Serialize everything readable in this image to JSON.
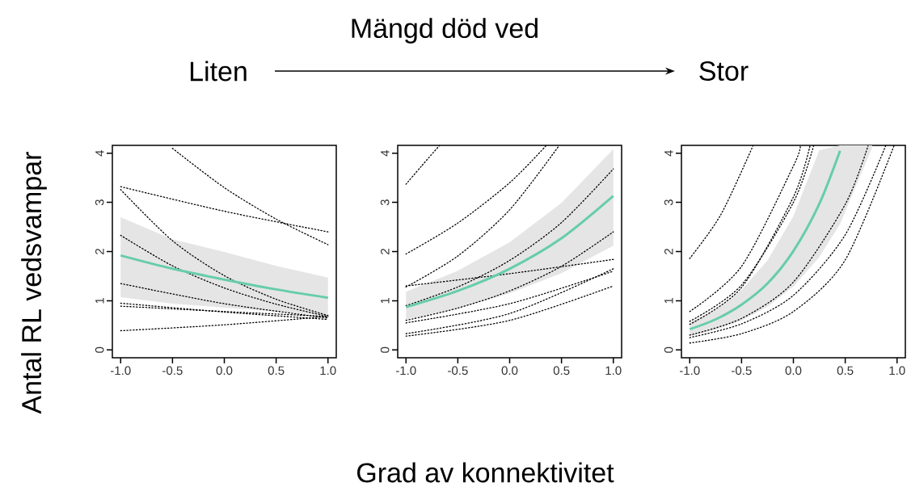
{
  "chart_data": [
    {
      "type": "line",
      "ylabel": "Antal RL vedsvampar",
      "annotations": [
        "Liten"
      ],
      "xlim": [
        -1.08,
        1.08
      ],
      "ylim": [
        -0.16,
        4.16
      ],
      "xticks": [
        {
          "value": -1,
          "label": "-1.0"
        },
        {
          "value": -0.5,
          "label": "-0.5"
        },
        {
          "value": 0,
          "label": "0.0"
        },
        {
          "value": 0.5,
          "label": "0.5"
        },
        {
          "value": 1,
          "label": "1.0"
        }
      ],
      "yticks": [
        0,
        1,
        2,
        3,
        4
      ],
      "series": [
        {
          "color": "#66cda8",
          "line_style": "solid",
          "x": [
            -1,
            -0.5,
            0,
            0.5,
            1
          ],
          "values": [
            1.92,
            1.65,
            1.43,
            1.23,
            1.06
          ],
          "lower": [
            1.07,
            0.94,
            0.86,
            0.78,
            0.7
          ],
          "upper": [
            2.7,
            2.25,
            1.99,
            1.71,
            1.47
          ]
        },
        {
          "color": "#000000",
          "line_style": "dotted",
          "x": [
            -0.5,
            0,
            0.5,
            1
          ],
          "values": [
            4.1,
            3.3,
            2.66,
            2.14
          ]
        },
        {
          "color": "#000000",
          "line_style": "dotted",
          "x": [
            -1,
            0,
            1
          ],
          "values": [
            3.32,
            2.82,
            2.4
          ]
        },
        {
          "color": "#000000",
          "line_style": "dotted",
          "x": [
            -1,
            -0.5,
            0,
            0.5,
            1
          ],
          "values": [
            3.26,
            2.22,
            1.51,
            1.03,
            0.7
          ]
        },
        {
          "color": "#000000",
          "line_style": "dotted",
          "x": [
            -1,
            -0.5,
            0,
            0.5,
            1
          ],
          "values": [
            2.33,
            1.71,
            1.26,
            0.93,
            0.68
          ]
        },
        {
          "color": "#000000",
          "line_style": "dotted",
          "x": [
            -1,
            0,
            1
          ],
          "values": [
            1.35,
            0.94,
            0.65
          ]
        },
        {
          "color": "#000000",
          "line_style": "dotted",
          "x": [
            -1,
            0,
            1
          ],
          "values": [
            0.95,
            0.77,
            0.62
          ]
        },
        {
          "color": "#000000",
          "line_style": "dotted",
          "x": [
            -1,
            0,
            1
          ],
          "values": [
            0.89,
            0.78,
            0.68
          ]
        },
        {
          "color": "#000000",
          "line_style": "dotted",
          "x": [
            -1,
            0,
            1
          ],
          "values": [
            0.39,
            0.51,
            0.68
          ]
        }
      ]
    },
    {
      "type": "line",
      "title": "Mängd död ved",
      "xlabel": "Grad av konnektivitet",
      "xlim": [
        -1.08,
        1.08
      ],
      "ylim": [
        -0.16,
        4.16
      ],
      "xticks": [
        {
          "value": -1,
          "label": "-1.0"
        },
        {
          "value": -0.5,
          "label": "-0.5"
        },
        {
          "value": 0,
          "label": "0.0"
        },
        {
          "value": 0.5,
          "label": "0.5"
        },
        {
          "value": 1,
          "label": "1.0"
        }
      ],
      "yticks": [
        0,
        1,
        2,
        3,
        4
      ],
      "series": [
        {
          "color": "#66cda8",
          "line_style": "solid",
          "x": [
            -1,
            -0.5,
            0,
            0.5,
            1
          ],
          "values": [
            0.87,
            1.2,
            1.65,
            2.27,
            3.13
          ],
          "lower": [
            0.62,
            0.84,
            1.15,
            1.56,
            2.12
          ],
          "upper": [
            1.18,
            1.61,
            2.19,
            2.99,
            4.08
          ]
        },
        {
          "color": "#000000",
          "line_style": "dotted",
          "x": [
            -1,
            -0.85,
            -0.68
          ],
          "values": [
            3.37,
            3.74,
            4.15
          ]
        },
        {
          "color": "#000000",
          "line_style": "dotted",
          "x": [
            -1,
            -0.5,
            0,
            0.35
          ],
          "values": [
            1.95,
            2.58,
            3.4,
            4.15
          ]
        },
        {
          "color": "#000000",
          "line_style": "dotted",
          "x": [
            -1,
            -0.5,
            0,
            0.475
          ],
          "values": [
            1.28,
            1.91,
            2.85,
            4.15
          ]
        },
        {
          "color": "#000000",
          "line_style": "dotted",
          "x": [
            -1,
            -0.5,
            0,
            0.5,
            1
          ],
          "values": [
            0.9,
            1.28,
            1.82,
            2.59,
            3.68
          ]
        },
        {
          "color": "#000000",
          "line_style": "dotted",
          "x": [
            -1,
            -0.5,
            0,
            0.5,
            1
          ],
          "values": [
            0.6,
            0.85,
            1.2,
            1.7,
            2.4
          ]
        },
        {
          "color": "#000000",
          "line_style": "dotted",
          "x": [
            -1,
            0,
            1
          ],
          "values": [
            1.3,
            1.55,
            1.84
          ]
        },
        {
          "color": "#000000",
          "line_style": "dotted",
          "x": [
            -1,
            0,
            1
          ],
          "values": [
            0.55,
            0.94,
            1.6
          ]
        },
        {
          "color": "#000000",
          "line_style": "dotted",
          "x": [
            -1,
            0,
            1
          ],
          "values": [
            0.33,
            0.74,
            1.65
          ]
        },
        {
          "color": "#000000",
          "line_style": "dotted",
          "x": [
            -1,
            0,
            1
          ],
          "values": [
            0.28,
            0.6,
            1.3
          ]
        }
      ]
    },
    {
      "type": "line",
      "annotations": [
        "Stor"
      ],
      "xlim": [
        -1.08,
        1.08
      ],
      "ylim": [
        -0.16,
        4.16
      ],
      "xticks": [
        {
          "value": -1,
          "label": "-1.0"
        },
        {
          "value": -0.5,
          "label": "-0.5"
        },
        {
          "value": 0,
          "label": "0.0"
        },
        {
          "value": 0.5,
          "label": "0.5"
        },
        {
          "value": 1,
          "label": "1.0"
        }
      ],
      "yticks": [
        0,
        1,
        2,
        3,
        4
      ],
      "series": [
        {
          "color": "#66cda8",
          "line_style": "solid",
          "x": [
            -1,
            -0.75,
            -0.5,
            -0.25,
            0,
            0.25,
            0.45,
            0.76
          ],
          "values": [
            0.42,
            0.62,
            0.92,
            1.35,
            2.01,
            2.97,
            4.05,
            null
          ],
          "lower": [
            0.28,
            0.41,
            0.6,
            0.88,
            1.29,
            1.89,
            2.56,
            4.12
          ],
          "upper": [
            0.55,
            0.82,
            1.22,
            1.82,
            2.72,
            4.06,
            4.16,
            4.16
          ]
        },
        {
          "color": "#000000",
          "line_style": "dotted",
          "x": [
            -1,
            -0.7,
            -0.39
          ],
          "values": [
            1.86,
            2.75,
            4.15
          ]
        },
        {
          "color": "#000000",
          "line_style": "dotted",
          "x": [
            -1,
            -0.5,
            0,
            0.066
          ],
          "values": [
            0.78,
            1.7,
            3.74,
            4.15
          ]
        },
        {
          "color": "#000000",
          "line_style": "dotted",
          "x": [
            -1,
            -0.5,
            0,
            0.195
          ],
          "values": [
            0.58,
            1.32,
            3.0,
            4.15
          ]
        },
        {
          "color": "#000000",
          "line_style": "dotted",
          "x": [
            -1,
            -0.5,
            0,
            0.16
          ],
          "values": [
            0.52,
            1.27,
            3.11,
            4.15
          ]
        },
        {
          "color": "#000000",
          "line_style": "dotted",
          "x": [
            -1,
            -0.5,
            0,
            0.5,
            0.72
          ],
          "values": [
            0.3,
            0.64,
            1.38,
            2.96,
            4.15
          ]
        },
        {
          "color": "#000000",
          "line_style": "dotted",
          "x": [
            -1,
            -0.5,
            0,
            0.5,
            0.89
          ],
          "values": [
            0.25,
            0.53,
            1.11,
            2.34,
            4.15
          ]
        },
        {
          "color": "#000000",
          "line_style": "dotted",
          "x": [
            -1,
            -0.5,
            0,
            0.5,
            0.97
          ],
          "values": [
            0.14,
            0.33,
            0.78,
            1.83,
            4.15
          ]
        }
      ]
    }
  ]
}
